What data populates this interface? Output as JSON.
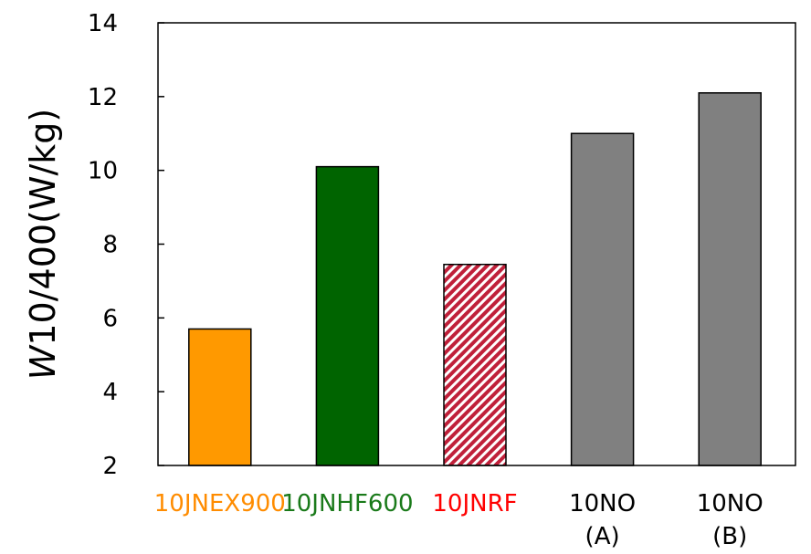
{
  "chart_data": {
    "type": "bar",
    "ylabel": {
      "symbol": "W",
      "rest": "10/400(W/kg)"
    },
    "ylim": [
      2,
      14
    ],
    "yticks": [
      2,
      4,
      6,
      8,
      10,
      12,
      14
    ],
    "grid": false,
    "legend": "none",
    "categories": [
      {
        "lines": [
          "10JNEX900"
        ],
        "color": "#FF8C00",
        "fill": "#FF9900",
        "pattern": "solid"
      },
      {
        "lines": [
          "10JNHF600"
        ],
        "color": "#1A7A1A",
        "fill": "#006400",
        "pattern": "solid"
      },
      {
        "lines": [
          "10JNRF"
        ],
        "color": "#FF0000",
        "fill": "#C0203A",
        "pattern": "diagonal-hatch"
      },
      {
        "lines": [
          "10NO",
          "(A)"
        ],
        "color": "#000000",
        "fill": "#808080",
        "pattern": "solid"
      },
      {
        "lines": [
          "10NO",
          "(B)"
        ],
        "color": "#000000",
        "fill": "#808080",
        "pattern": "solid"
      }
    ],
    "values": [
      5.7,
      10.1,
      7.45,
      11.0,
      12.1
    ]
  }
}
